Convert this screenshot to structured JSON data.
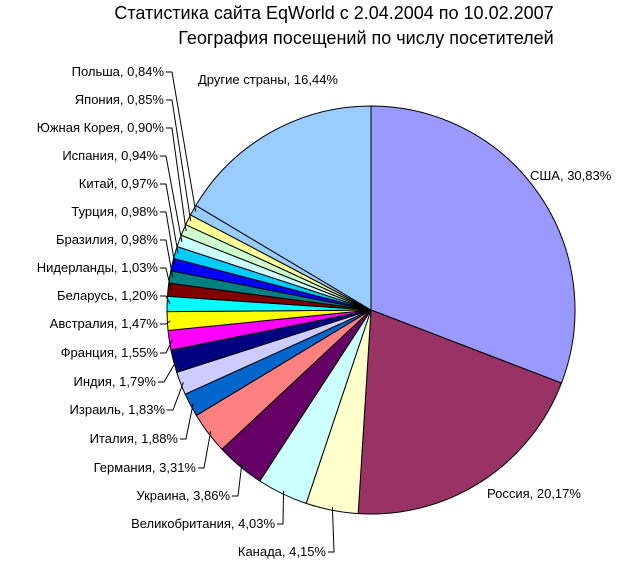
{
  "chart_data": {
    "type": "pie",
    "title": "Статистика сайта EqWorld с 2.04.2004 по 10.02.2007",
    "subtitle": "География посещений по числу посетителей",
    "slices": [
      {
        "label": "США, 30,83%",
        "value": 30.83,
        "color": "#9999ff"
      },
      {
        "label": "Россия, 20,17%",
        "value": 20.17,
        "color": "#993366"
      },
      {
        "label": "Канада, 4,15%",
        "value": 4.15,
        "color": "#ffffcc"
      },
      {
        "label": "Великобритания, 4,03%",
        "value": 4.03,
        "color": "#ccffff"
      },
      {
        "label": "Украина, 3,86%",
        "value": 3.86,
        "color": "#660066"
      },
      {
        "label": "Германия, 3,31%",
        "value": 3.31,
        "color": "#ff8080"
      },
      {
        "label": "Италия, 1,88%",
        "value": 1.88,
        "color": "#0066cc"
      },
      {
        "label": "Израиль, 1,83%",
        "value": 1.83,
        "color": "#ccccff"
      },
      {
        "label": "Индия, 1,79%",
        "value": 1.79,
        "color": "#000080"
      },
      {
        "label": "Франция, 1,55%",
        "value": 1.55,
        "color": "#ff00ff"
      },
      {
        "label": "Австралия, 1,47%",
        "value": 1.47,
        "color": "#ffff00"
      },
      {
        "label": "Беларусь, 1,20%",
        "value": 1.2,
        "color": "#00ffff"
      },
      {
        "label": "Нидерланды, 1,03%",
        "value": 1.03,
        "color": "#800000"
      },
      {
        "label": "Бразилия, 0,98%",
        "value": 0.98,
        "color": "#008080"
      },
      {
        "label": "Турция, 0,98%",
        "value": 0.98,
        "color": "#0000ff"
      },
      {
        "label": "Китай, 0,97%",
        "value": 0.97,
        "color": "#00ccff"
      },
      {
        "label": "Испания, 0,94%",
        "value": 0.94,
        "color": "#ccffff"
      },
      {
        "label": "Южная Корея, 0,90%",
        "value": 0.9,
        "color": "#ccffcc"
      },
      {
        "label": "Япония, 0,85%",
        "value": 0.85,
        "color": "#ffff99"
      },
      {
        "label": "Польша, 0,84%",
        "value": 0.84,
        "color": "#99ccff"
      },
      {
        "label": "Другие страны, 16,44%",
        "value": 16.44,
        "color": "#99ccff"
      }
    ]
  }
}
